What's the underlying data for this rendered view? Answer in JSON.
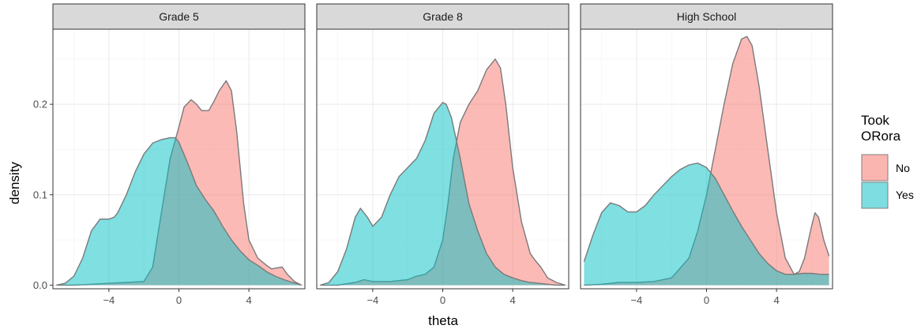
{
  "chart_data": {
    "type": "area",
    "subtype": "density",
    "xlabel": "theta",
    "ylabel": "density",
    "xlim": [
      -7.2,
      7.2
    ],
    "ylim": [
      -0.004,
      0.283
    ],
    "x_ticks": [
      -4,
      0,
      4
    ],
    "x_tick_labels": [
      "−4",
      "0",
      "4"
    ],
    "y_ticks": [
      0.0,
      0.1,
      0.2
    ],
    "y_tick_labels": [
      "0.0",
      "0.1",
      "0.2"
    ],
    "grid": true,
    "legend": {
      "title_lines": [
        "Took",
        "ORora"
      ],
      "position": "right",
      "entries": [
        {
          "label": "No",
          "color": "#F8766D"
        },
        {
          "label": "Yes",
          "color": "#00BFC4"
        }
      ]
    },
    "series_colors": {
      "No": "#F8766D",
      "Yes": "#00BFC4"
    },
    "facets": [
      {
        "label": "Grade 5",
        "series": [
          {
            "name": "No",
            "x": [
              -7.0,
              -6.0,
              -5.0,
              -4.0,
              -3.0,
              -2.0,
              -1.5,
              -1.0,
              -0.5,
              0.0,
              0.3,
              0.7,
              1.0,
              1.3,
              1.7,
              2.0,
              2.3,
              2.7,
              3.0,
              3.3,
              3.7,
              4.0,
              4.5,
              5.0,
              5.3,
              5.6,
              5.9,
              6.2,
              6.6,
              7.0
            ],
            "y": [
              0.0,
              0.0,
              0.001,
              0.002,
              0.003,
              0.004,
              0.02,
              0.08,
              0.14,
              0.175,
              0.197,
              0.205,
              0.2,
              0.193,
              0.193,
              0.203,
              0.215,
              0.226,
              0.215,
              0.17,
              0.09,
              0.05,
              0.03,
              0.022,
              0.018,
              0.019,
              0.02,
              0.012,
              0.004,
              0.0
            ]
          },
          {
            "name": "Yes",
            "x": [
              -7.0,
              -6.5,
              -6.0,
              -5.5,
              -5.0,
              -4.5,
              -4.0,
              -3.7,
              -3.5,
              -3.0,
              -2.5,
              -2.0,
              -1.5,
              -1.0,
              -0.5,
              -0.2,
              0.0,
              0.5,
              1.0,
              1.5,
              2.0,
              2.5,
              3.0,
              3.5,
              4.0,
              4.5,
              5.0,
              5.5,
              6.0,
              6.5,
              7.0
            ],
            "y": [
              0.0,
              0.002,
              0.01,
              0.03,
              0.06,
              0.073,
              0.073,
              0.075,
              0.08,
              0.1,
              0.125,
              0.145,
              0.157,
              0.161,
              0.163,
              0.163,
              0.158,
              0.135,
              0.11,
              0.095,
              0.082,
              0.065,
              0.05,
              0.038,
              0.028,
              0.022,
              0.015,
              0.01,
              0.006,
              0.003,
              0.0
            ]
          }
        ]
      },
      {
        "label": "Grade 8",
        "series": [
          {
            "name": "No",
            "x": [
              -7.0,
              -6.0,
              -5.0,
              -4.5,
              -4.0,
              -3.0,
              -2.0,
              -1.5,
              -1.0,
              -0.5,
              0.0,
              0.3,
              0.6,
              1.0,
              1.5,
              2.0,
              2.5,
              3.0,
              3.3,
              3.6,
              4.0,
              4.5,
              5.0,
              5.3,
              5.6,
              6.0,
              6.5,
              7.0
            ],
            "y": [
              0.0,
              0.0,
              0.003,
              0.006,
              0.004,
              0.004,
              0.006,
              0.01,
              0.012,
              0.02,
              0.05,
              0.09,
              0.14,
              0.18,
              0.2,
              0.215,
              0.238,
              0.25,
              0.24,
              0.2,
              0.13,
              0.07,
              0.035,
              0.027,
              0.02,
              0.008,
              0.003,
              0.0
            ]
          },
          {
            "name": "Yes",
            "x": [
              -7.0,
              -6.5,
              -6.0,
              -5.5,
              -5.0,
              -4.7,
              -4.3,
              -4.0,
              -3.5,
              -3.0,
              -2.5,
              -2.0,
              -1.5,
              -1.0,
              -0.5,
              0.0,
              0.2,
              0.5,
              1.0,
              1.5,
              2.0,
              2.5,
              3.0,
              3.5,
              4.0,
              4.5,
              5.0,
              5.5,
              6.0,
              6.5,
              7.0
            ],
            "y": [
              0.0,
              0.003,
              0.015,
              0.04,
              0.075,
              0.085,
              0.075,
              0.065,
              0.075,
              0.1,
              0.12,
              0.13,
              0.14,
              0.16,
              0.19,
              0.202,
              0.2,
              0.185,
              0.14,
              0.09,
              0.06,
              0.035,
              0.02,
              0.012,
              0.008,
              0.005,
              0.003,
              0.002,
              0.001,
              0.0,
              0.0
            ]
          }
        ]
      },
      {
        "label": "High School",
        "series": [
          {
            "name": "No",
            "x": [
              -7.0,
              -6.0,
              -5.0,
              -4.0,
              -3.0,
              -2.0,
              -1.0,
              -0.5,
              0.0,
              0.5,
              1.0,
              1.5,
              2.0,
              2.3,
              2.6,
              3.0,
              3.5,
              4.0,
              4.5,
              5.0,
              5.3,
              5.6,
              6.0,
              6.2,
              6.4,
              6.7,
              7.0
            ],
            "y": [
              0.0,
              0.001,
              0.003,
              0.003,
              0.004,
              0.008,
              0.03,
              0.06,
              0.1,
              0.15,
              0.2,
              0.245,
              0.272,
              0.275,
              0.265,
              0.22,
              0.15,
              0.08,
              0.03,
              0.012,
              0.015,
              0.03,
              0.065,
              0.08,
              0.075,
              0.05,
              0.032
            ]
          },
          {
            "name": "Yes",
            "x": [
              -7.0,
              -6.5,
              -6.0,
              -5.5,
              -5.0,
              -4.5,
              -4.0,
              -3.5,
              -3.0,
              -2.5,
              -2.0,
              -1.5,
              -1.0,
              -0.5,
              0.0,
              0.5,
              1.0,
              1.5,
              2.0,
              2.5,
              3.0,
              3.5,
              4.0,
              4.5,
              5.0,
              5.5,
              6.0,
              6.5,
              7.0
            ],
            "y": [
              0.026,
              0.055,
              0.08,
              0.091,
              0.088,
              0.081,
              0.081,
              0.088,
              0.1,
              0.11,
              0.12,
              0.128,
              0.133,
              0.135,
              0.13,
              0.118,
              0.1,
              0.082,
              0.065,
              0.05,
              0.035,
              0.024,
              0.016,
              0.012,
              0.012,
              0.013,
              0.013,
              0.012,
              0.012
            ]
          }
        ]
      }
    ]
  }
}
